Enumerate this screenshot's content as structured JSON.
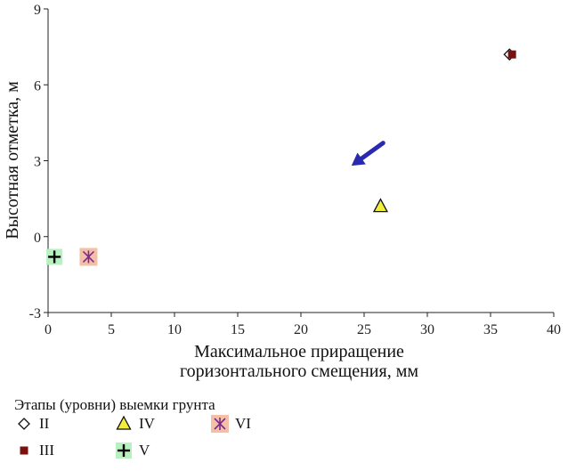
{
  "chart_data": {
    "type": "scatter",
    "xlabel": [
      "Максимальное приращение",
      "горизонтального смещения, мм"
    ],
    "ylabel": "Высотная отметка, м",
    "xlim": [
      0,
      40
    ],
    "ylim": [
      -3,
      9
    ],
    "xticks": [
      0,
      5,
      10,
      15,
      20,
      25,
      30,
      35,
      40
    ],
    "yticks": [
      -3,
      0,
      3,
      6,
      9
    ],
    "grid": false,
    "legend_title": "Этапы (уровни) выемки грунта",
    "legend_placement": "bottom",
    "series": [
      {
        "name": "II",
        "marker": "diamond",
        "color": "#ffffff",
        "x": [
          36.5
        ],
        "y": [
          7.2
        ]
      },
      {
        "name": "III",
        "marker": "square",
        "color": "#7a1010",
        "x": [
          36.7
        ],
        "y": [
          7.2
        ]
      },
      {
        "name": "IV",
        "marker": "triangle",
        "color": "#f2ef3a",
        "x": [
          26.3
        ],
        "y": [
          1.2
        ]
      },
      {
        "name": "V",
        "marker": "plus",
        "color": "#b8f0bf",
        "x": [
          0.5
        ],
        "y": [
          -0.8
        ]
      },
      {
        "name": "VI",
        "marker": "asterisk",
        "color": "#f3c0a6",
        "x": [
          3.2
        ],
        "y": [
          -0.8
        ]
      }
    ],
    "annotations": [
      {
        "type": "arrow",
        "color": "#2a2ab0",
        "from": [
          26.5,
          3.7
        ],
        "to": [
          24.0,
          2.8
        ]
      }
    ]
  }
}
